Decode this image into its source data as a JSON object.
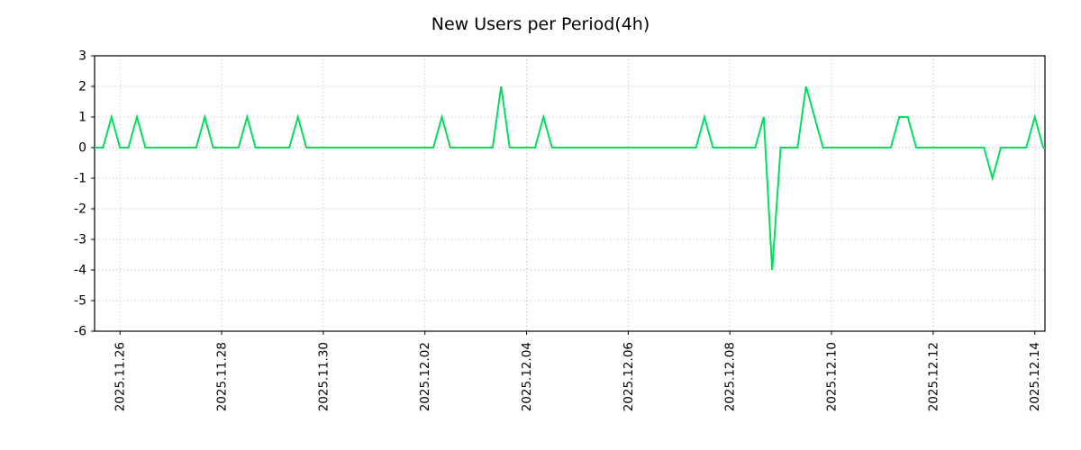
{
  "chart_data": {
    "type": "line",
    "title": "New Users per Period(4h)",
    "line_color": "#00df5c",
    "grid_color": "#b5b5b5",
    "axis_color": "#000000",
    "background": "#ffffff",
    "grid": "dotted",
    "legend": "none",
    "interval_hours": 4,
    "day_zero_date": "2025.11.26",
    "x_domain_days": [
      -0.5,
      18.2
    ],
    "y_domain": [
      -6,
      3
    ],
    "y_ticks": [
      3,
      2,
      1,
      0,
      -1,
      -2,
      -3,
      -4,
      -5,
      -6
    ],
    "x_ticks": [
      {
        "day": 0,
        "label": "2025.11.26"
      },
      {
        "day": 2,
        "label": "2025.11.28"
      },
      {
        "day": 4,
        "label": "2025.11.30"
      },
      {
        "day": 6,
        "label": "2025.12.02"
      },
      {
        "day": 8,
        "label": "2025.12.04"
      },
      {
        "day": 10,
        "label": "2025.12.06"
      },
      {
        "day": 12,
        "label": "2025.12.08"
      },
      {
        "day": 14,
        "label": "2025.12.10"
      },
      {
        "day": 16,
        "label": "2025.12.12"
      },
      {
        "day": 18,
        "label": "2025.12.14"
      }
    ],
    "points": [
      [
        -0.5,
        0
      ],
      [
        -0.333,
        0
      ],
      [
        -0.167,
        1
      ],
      [
        0,
        0
      ],
      [
        0.167,
        0
      ],
      [
        0.333,
        1
      ],
      [
        0.5,
        0
      ],
      [
        1.5,
        0
      ],
      [
        1.667,
        1
      ],
      [
        1.833,
        0
      ],
      [
        2.333,
        0
      ],
      [
        2.5,
        1
      ],
      [
        2.667,
        0
      ],
      [
        3.333,
        0
      ],
      [
        3.5,
        1
      ],
      [
        3.667,
        0
      ],
      [
        6.167,
        0
      ],
      [
        6.333,
        1
      ],
      [
        6.5,
        0
      ],
      [
        7.333,
        0
      ],
      [
        7.5,
        2
      ],
      [
        7.667,
        0
      ],
      [
        8.167,
        0
      ],
      [
        8.333,
        1
      ],
      [
        8.5,
        0
      ],
      [
        11.333,
        0
      ],
      [
        11.5,
        1
      ],
      [
        11.667,
        0
      ],
      [
        12.5,
        0
      ],
      [
        12.667,
        1
      ],
      [
        12.833,
        -4
      ],
      [
        13,
        0
      ],
      [
        13.333,
        0
      ],
      [
        13.5,
        2
      ],
      [
        13.833,
        0
      ],
      [
        15.167,
        0
      ],
      [
        15.333,
        1
      ],
      [
        15.5,
        1
      ],
      [
        15.667,
        0
      ],
      [
        17,
        0
      ],
      [
        17.167,
        -1
      ],
      [
        17.333,
        0
      ],
      [
        17.833,
        0
      ],
      [
        18,
        1
      ],
      [
        18.167,
        0
      ],
      [
        18.2,
        0
      ]
    ]
  }
}
